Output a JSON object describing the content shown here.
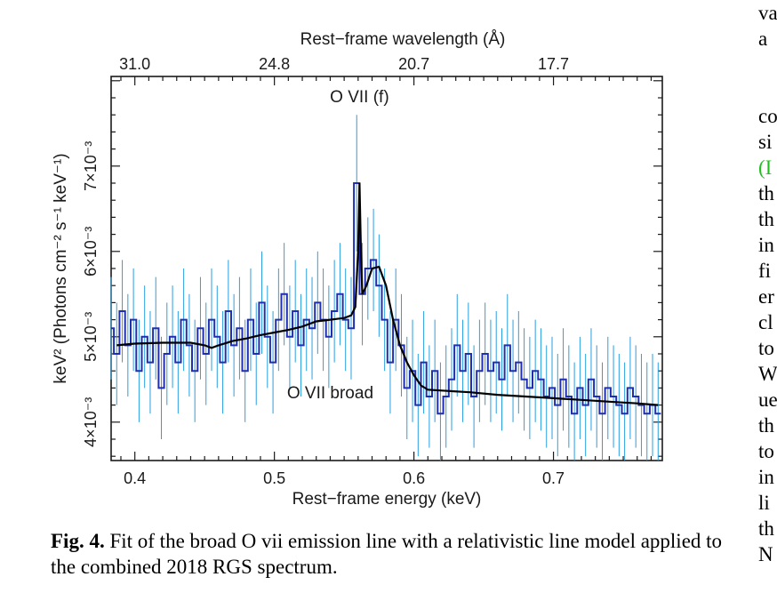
{
  "chart_data": {
    "type": "line",
    "xlabel_bottom": "Rest−frame energy (keV)",
    "xlabel_top": "Rest−frame wavelength (Å)",
    "ylabel": "keV² (Photons cm⁻² s⁻¹ keV⁻¹)",
    "xlim": [
      0.383,
      0.778
    ],
    "ylim": [
      0.00355,
      0.00805
    ],
    "x_ticks": [
      {
        "value": 0.4,
        "label": "0.4"
      },
      {
        "value": 0.5,
        "label": "0.5"
      },
      {
        "value": 0.6,
        "label": "0.6"
      },
      {
        "value": 0.7,
        "label": "0.7"
      }
    ],
    "top_ticks": [
      {
        "value": 0.4,
        "label": "31.0"
      },
      {
        "value": 0.5,
        "label": "24.8"
      },
      {
        "value": 0.6,
        "label": "20.7"
      },
      {
        "value": 0.7,
        "label": "17.7"
      }
    ],
    "y_ticks": [
      {
        "value": 0.004,
        "label": "4×10⁻³"
      },
      {
        "value": 0.005,
        "label": "5×10⁻³"
      },
      {
        "value": 0.006,
        "label": "6×10⁻³"
      },
      {
        "value": 0.007,
        "label": "7×10⁻³"
      }
    ],
    "annotations": [
      {
        "text": "O VII (f)",
        "x": 0.561,
        "y": 0.00775
      },
      {
        "text": "O VII broad",
        "x": 0.54,
        "y": 0.00428
      }
    ],
    "series": [
      {
        "kind": "data-step",
        "color": "#1f2fb0",
        "error_color": "#2a9fe0",
        "x": [
          0.383,
          0.387,
          0.391,
          0.395,
          0.399,
          0.403,
          0.407,
          0.411,
          0.415,
          0.419,
          0.423,
          0.427,
          0.431,
          0.435,
          0.439,
          0.443,
          0.447,
          0.451,
          0.455,
          0.459,
          0.463,
          0.467,
          0.471,
          0.475,
          0.479,
          0.483,
          0.487,
          0.491,
          0.495,
          0.499,
          0.503,
          0.507,
          0.511,
          0.515,
          0.519,
          0.523,
          0.527,
          0.531,
          0.535,
          0.539,
          0.543,
          0.547,
          0.551,
          0.555,
          0.559,
          0.563,
          0.567,
          0.571,
          0.575,
          0.579,
          0.583,
          0.587,
          0.591,
          0.595,
          0.599,
          0.603,
          0.607,
          0.611,
          0.615,
          0.619,
          0.623,
          0.627,
          0.631,
          0.635,
          0.639,
          0.643,
          0.647,
          0.651,
          0.655,
          0.659,
          0.663,
          0.667,
          0.671,
          0.675,
          0.679,
          0.683,
          0.687,
          0.691,
          0.695,
          0.699,
          0.703,
          0.707,
          0.711,
          0.715,
          0.719,
          0.723,
          0.727,
          0.731,
          0.735,
          0.739,
          0.743,
          0.747,
          0.751,
          0.755,
          0.759,
          0.763,
          0.767,
          0.771,
          0.775
        ],
        "y": [
          0.0051,
          0.0048,
          0.0053,
          0.0049,
          0.0052,
          0.0046,
          0.005,
          0.0047,
          0.0051,
          0.0044,
          0.0048,
          0.005,
          0.0047,
          0.0052,
          0.0049,
          0.0046,
          0.0051,
          0.0048,
          0.0052,
          0.005,
          0.0047,
          0.0053,
          0.0049,
          0.0051,
          0.0046,
          0.0052,
          0.0048,
          0.0054,
          0.005,
          0.0047,
          0.0052,
          0.0055,
          0.005,
          0.0053,
          0.0049,
          0.0052,
          0.0051,
          0.0054,
          0.0052,
          0.005,
          0.0053,
          0.0055,
          0.0052,
          0.0051,
          0.0068,
          0.0055,
          0.0058,
          0.0059,
          0.0056,
          0.0052,
          0.0047,
          0.0052,
          0.0049,
          0.0044,
          0.0046,
          0.0042,
          0.0047,
          0.0043,
          0.0046,
          0.0041,
          0.0043,
          0.0045,
          0.0049,
          0.0046,
          0.0048,
          0.0043,
          0.0046,
          0.0048,
          0.0046,
          0.0047,
          0.0045,
          0.0049,
          0.0046,
          0.0047,
          0.0045,
          0.0044,
          0.0046,
          0.0045,
          0.0043,
          0.0044,
          0.0042,
          0.0045,
          0.0043,
          0.0041,
          0.0044,
          0.0042,
          0.0045,
          0.0043,
          0.0041,
          0.0044,
          0.0043,
          0.0042,
          0.0041,
          0.0044,
          0.0043,
          0.0042,
          0.0041,
          0.0042,
          0.0041
        ],
        "err": [
          0.0006,
          0.0006,
          0.0006,
          0.0006,
          0.0006,
          0.0006,
          0.0006,
          0.0006,
          0.0006,
          0.0006,
          0.0006,
          0.0006,
          0.0006,
          0.0006,
          0.0006,
          0.0006,
          0.0006,
          0.0006,
          0.0006,
          0.0006,
          0.0006,
          0.0006,
          0.0006,
          0.0006,
          0.0006,
          0.0006,
          0.0006,
          0.0006,
          0.0006,
          0.0006,
          0.0006,
          0.0006,
          0.0006,
          0.0006,
          0.0006,
          0.0006,
          0.0006,
          0.0006,
          0.0006,
          0.0006,
          0.0006,
          0.0006,
          0.0006,
          0.0006,
          0.0008,
          0.0006,
          0.0006,
          0.0006,
          0.0006,
          0.0006,
          0.0006,
          0.0006,
          0.0006,
          0.0006,
          0.0006,
          0.0006,
          0.0006,
          0.0006,
          0.0006,
          0.0006,
          0.0006,
          0.0006,
          0.0006,
          0.0006,
          0.0006,
          0.0006,
          0.0006,
          0.0006,
          0.0006,
          0.0006,
          0.0006,
          0.0006,
          0.0006,
          0.0006,
          0.0006,
          0.0006,
          0.0006,
          0.0006,
          0.0006,
          0.0006,
          0.0006,
          0.0006,
          0.0006,
          0.0006,
          0.0006,
          0.0006,
          0.0006,
          0.0006,
          0.0006,
          0.0006,
          0.0006,
          0.0006,
          0.0006,
          0.0006,
          0.0006,
          0.0006,
          0.0006,
          0.0006,
          0.0006
        ]
      },
      {
        "kind": "model",
        "color": "#000000",
        "x": [
          0.387,
          0.4,
          0.42,
          0.44,
          0.45,
          0.455,
          0.46,
          0.47,
          0.48,
          0.49,
          0.5,
          0.51,
          0.52,
          0.53,
          0.54,
          0.55,
          0.555,
          0.558,
          0.56,
          0.561,
          0.562,
          0.563,
          0.566,
          0.57,
          0.575,
          0.58,
          0.585,
          0.59,
          0.595,
          0.6,
          0.605,
          0.61,
          0.62,
          0.64,
          0.66,
          0.68,
          0.7,
          0.72,
          0.74,
          0.76,
          0.775
        ],
        "y": [
          0.0049,
          0.00492,
          0.00493,
          0.00493,
          0.0049,
          0.00487,
          0.0049,
          0.00495,
          0.00498,
          0.00502,
          0.00505,
          0.00508,
          0.00512,
          0.00518,
          0.0052,
          0.00522,
          0.00525,
          0.00535,
          0.006,
          0.0068,
          0.006,
          0.0055,
          0.0056,
          0.0058,
          0.00582,
          0.0056,
          0.0052,
          0.0049,
          0.0047,
          0.00455,
          0.00443,
          0.00438,
          0.00437,
          0.00435,
          0.00432,
          0.0043,
          0.00428,
          0.00426,
          0.00424,
          0.00422,
          0.0042
        ]
      }
    ]
  },
  "caption": {
    "label": "Fig. 4.",
    "text": " Fit of the broad O vii emission line with a relativistic line model applied to the combined 2018 RGS spectrum."
  },
  "side_text": [
    "va",
    "a",
    "",
    "",
    "co",
    "si",
    "(I",
    "th",
    "th",
    "in",
    "fi",
    "er",
    "cl",
    "to",
    "W",
    "ue",
    "th",
    "to",
    "in",
    "li",
    "th",
    "N"
  ]
}
